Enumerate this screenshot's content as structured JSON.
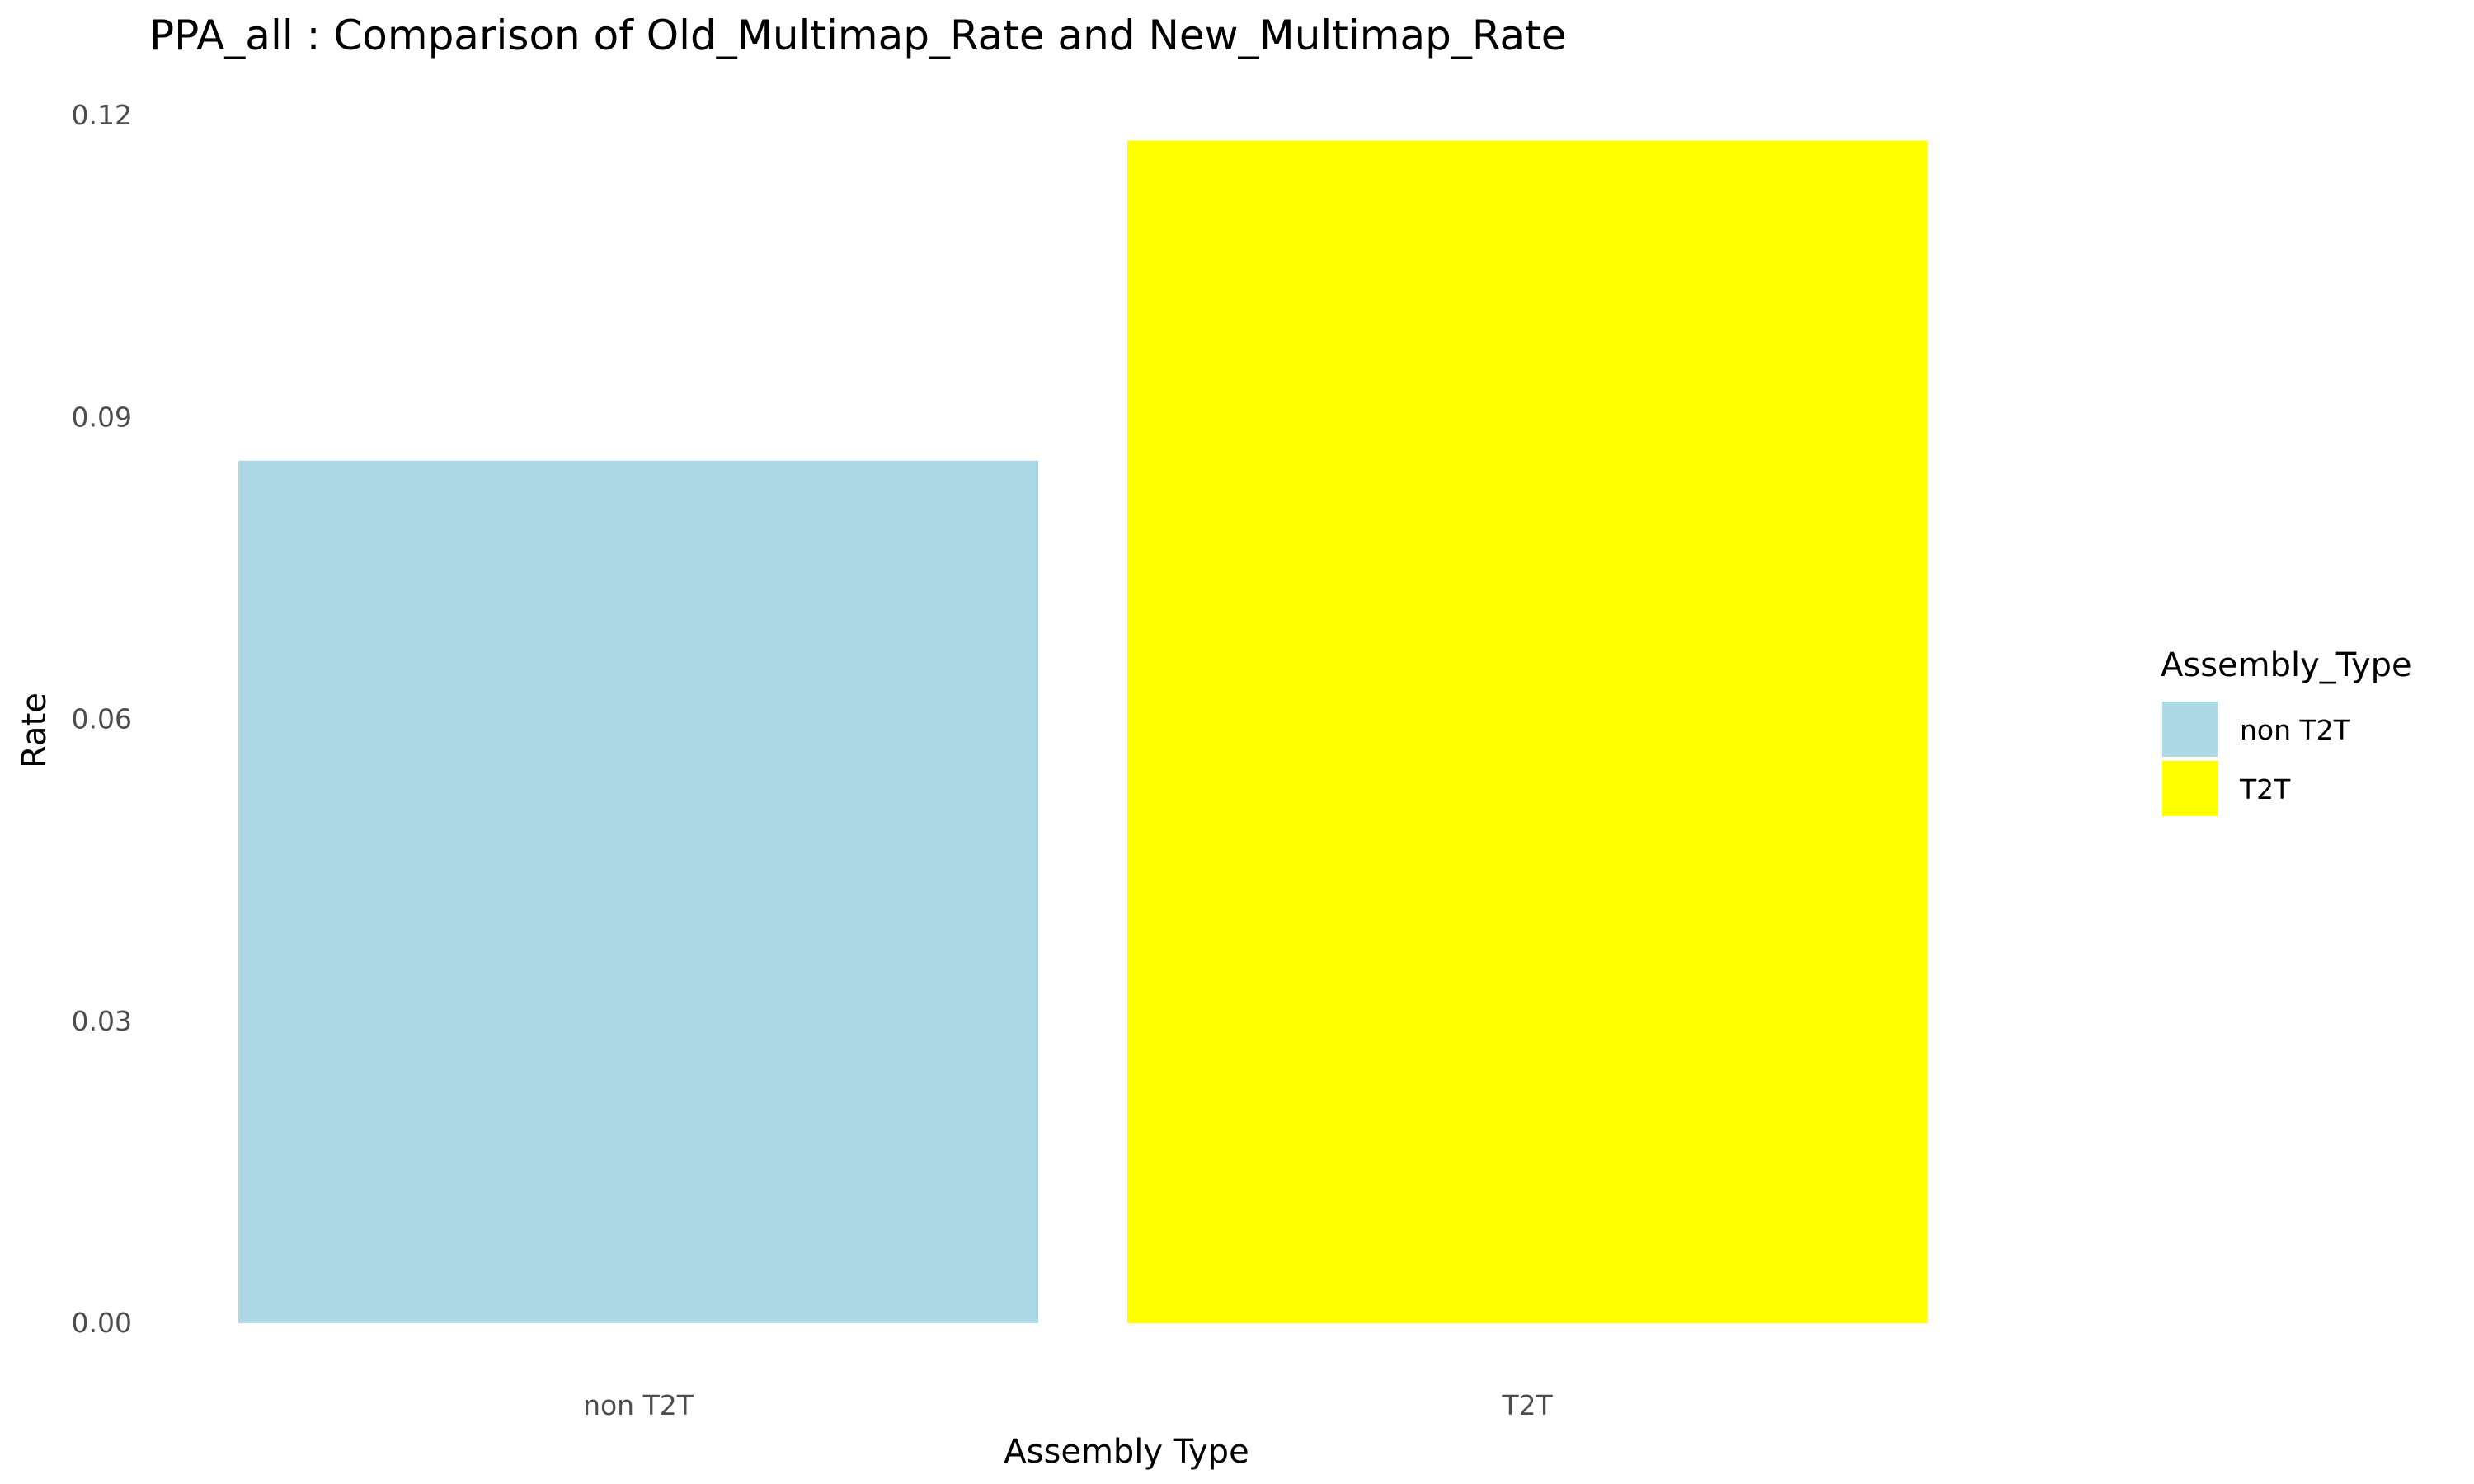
{
  "chart_data": {
    "type": "bar",
    "title": "PPA_all : Comparison of Old_Multimap_Rate and New_Multimap_Rate",
    "xlabel": "Assembly Type",
    "ylabel": "Rate",
    "categories": [
      "non T2T",
      "T2T"
    ],
    "values": [
      0.0857,
      0.1175
    ],
    "colors": [
      "#add8e6",
      "#ffff00"
    ],
    "ylim": [
      0,
      0.12
    ],
    "yticks": [
      "0.00",
      "0.03",
      "0.06",
      "0.09",
      "0.12"
    ],
    "grid": false,
    "legend": {
      "title": "Assembly_Type",
      "entries": [
        "non T2T",
        "T2T"
      ],
      "placement": "right"
    }
  }
}
